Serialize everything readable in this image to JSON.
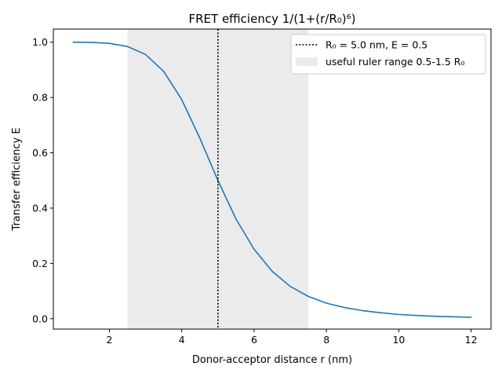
{
  "chart_data": {
    "type": "line",
    "title": "FRET efficiency 1/(1+(r/R₀)⁶)",
    "xlabel": "Donor-acceptor distance r (nm)",
    "ylabel": "Transfer efficiency E",
    "xlim": [
      0.45,
      12.55
    ],
    "ylim": [
      -0.0375,
      1.0475
    ],
    "xticks": [
      2,
      4,
      6,
      8,
      10,
      12
    ],
    "xtick_labels": [
      "2",
      "4",
      "6",
      "8",
      "10",
      "12"
    ],
    "yticks": [
      0.0,
      0.2,
      0.4,
      0.6,
      0.8,
      1.0
    ],
    "ytick_labels": [
      "0.0",
      "0.2",
      "0.4",
      "0.6",
      "0.8",
      "1.0"
    ],
    "grid": false,
    "legend_position": "top-right",
    "series": [
      {
        "type": "line",
        "color": "#1f77b4",
        "x": [
          1.0,
          1.5,
          2.0,
          2.5,
          3.0,
          3.5,
          4.0,
          4.5,
          5.0,
          5.5,
          6.0,
          6.5,
          7.0,
          7.5,
          8.0,
          8.5,
          9.0,
          9.5,
          10.0,
          10.5,
          11.0,
          11.5,
          12.0
        ],
        "y": [
          1.0,
          0.9993,
          0.9959,
          0.9846,
          0.9554,
          0.8947,
          0.7923,
          0.6531,
          0.5,
          0.3605,
          0.2511,
          0.1717,
          0.1168,
          0.0807,
          0.0563,
          0.0405,
          0.0292,
          0.0216,
          0.0154,
          0.0118,
          0.0089,
          0.007,
          0.0051
        ]
      }
    ],
    "vline": {
      "x": 5.0,
      "style": "dotted",
      "color": "#000000",
      "legend": "R₀ = 5.0 nm, E = 0.5"
    },
    "span": {
      "x0": 2.5,
      "x1": 7.5,
      "color": "#ebebeb",
      "legend": "useful ruler range 0.5-1.5 R₀"
    }
  }
}
